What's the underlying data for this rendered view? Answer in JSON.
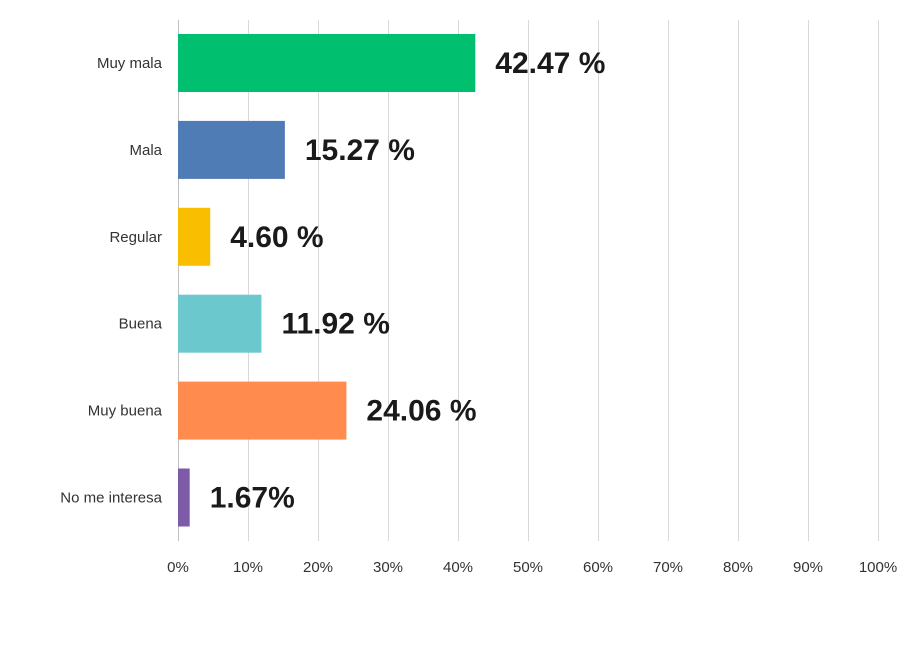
{
  "chart_data": {
    "type": "bar",
    "orientation": "horizontal",
    "categories": [
      "Muy mala",
      "Mala",
      "Regular",
      "Buena",
      "Muy buena",
      "No me interesa"
    ],
    "values": [
      42.47,
      15.27,
      4.6,
      11.92,
      24.06,
      1.67
    ],
    "data_labels": [
      "42.47 %",
      "15.27 %",
      "4.60 %",
      "11.92 %",
      "24.06 %",
      "1.67%"
    ],
    "colors": [
      "#00bf6f",
      "#507cb6",
      "#f9be00",
      "#6bc8cd",
      "#ff8b4f",
      "#7d5ba6"
    ],
    "xlim": [
      0,
      100
    ],
    "x_ticks": [
      0,
      10,
      20,
      30,
      40,
      50,
      60,
      70,
      80,
      90,
      100
    ],
    "x_tick_labels": [
      "0%",
      "10%",
      "20%",
      "30%",
      "40%",
      "50%",
      "60%",
      "70%",
      "80%",
      "90%",
      "100%"
    ],
    "grid": true,
    "title": "",
    "xlabel": "",
    "ylabel": ""
  }
}
